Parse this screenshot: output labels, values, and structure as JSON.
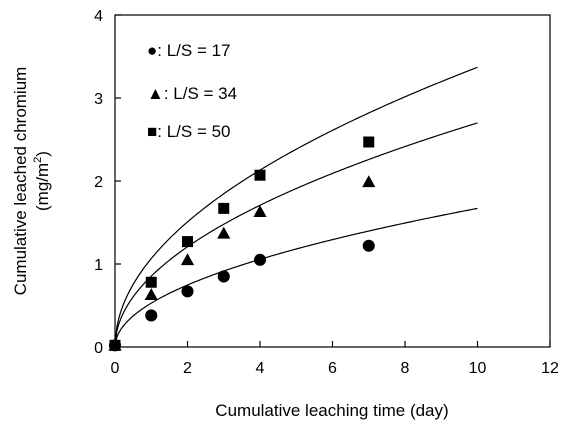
{
  "chart_data": {
    "type": "scatter",
    "xlabel": "Cumulative leaching time (day)",
    "ylabel_line1": "Cumulative leached chromium",
    "ylabel_line2_prefix": "(mg/m",
    "ylabel_line2_sup": "2",
    "ylabel_line2_suffix": ")",
    "xlim": [
      0,
      12
    ],
    "ylim": [
      0,
      4
    ],
    "xticks": [
      "0",
      "2",
      "4",
      "6",
      "8",
      "10",
      "12"
    ],
    "yticks": [
      "0",
      "1",
      "2",
      "3",
      "4"
    ],
    "grid": false,
    "legend_position": "top-left",
    "series": [
      {
        "name": "L/S = 17",
        "legend_label": "●: L/S = 17",
        "marker": "circle",
        "x": [
          0,
          1,
          2,
          3,
          4,
          7
        ],
        "y": [
          0.02,
          0.38,
          0.67,
          0.85,
          1.05,
          1.22
        ],
        "fit_y_at_10": 1.67
      },
      {
        "name": "L/S = 34",
        "legend_label": "▲: L/S = 34",
        "marker": "triangle",
        "x": [
          0,
          1,
          2,
          3,
          4,
          7
        ],
        "y": [
          0.02,
          0.63,
          1.05,
          1.37,
          1.63,
          1.99
        ],
        "fit_y_at_10": 2.7
      },
      {
        "name": "L/S = 50",
        "legend_label": "■: L/S = 50",
        "marker": "square",
        "x": [
          0,
          1,
          2,
          3,
          4,
          7
        ],
        "y": [
          0.02,
          0.78,
          1.27,
          1.67,
          2.07,
          2.47
        ],
        "fit_y_at_10": 3.37
      }
    ]
  }
}
